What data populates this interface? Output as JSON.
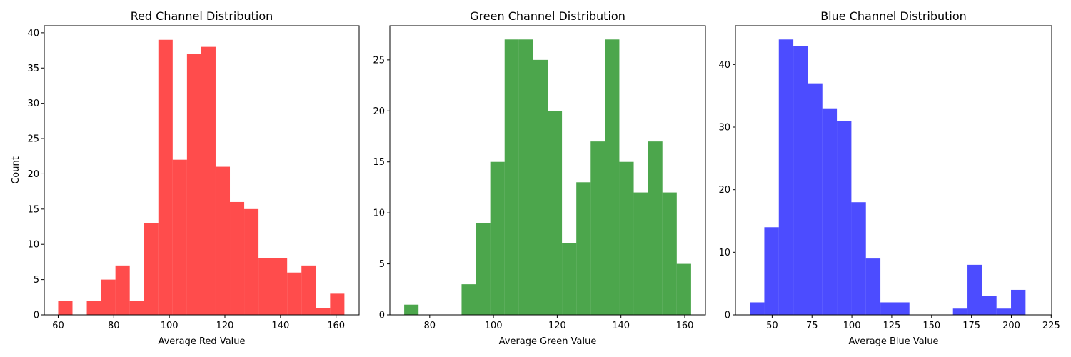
{
  "chart_data": [
    {
      "type": "bar",
      "title": "Red Channel Distribution",
      "xlabel": "Average Red Value",
      "ylabel": "Count",
      "color": "#ff0000",
      "opacity": 0.7,
      "bin_start": 60,
      "bin_width": 5.15,
      "values": [
        2,
        0,
        2,
        5,
        7,
        2,
        13,
        39,
        22,
        37,
        38,
        21,
        16,
        15,
        8,
        8,
        6,
        7,
        1,
        3
      ],
      "xlim": [
        55.0,
        168.3
      ],
      "ylim": [
        0,
        41
      ],
      "xticks": [
        60,
        80,
        100,
        120,
        140,
        160
      ],
      "yticks": [
        0,
        5,
        10,
        15,
        20,
        25,
        30,
        35,
        40
      ]
    },
    {
      "type": "bar",
      "title": "Green Channel Distribution",
      "xlabel": "Average Green Value",
      "ylabel": "",
      "color": "#008000",
      "opacity": 0.7,
      "bin_start": 72,
      "bin_width": 4.5,
      "values": [
        1,
        0,
        0,
        0,
        3,
        9,
        15,
        27,
        27,
        25,
        20,
        7,
        13,
        17,
        27,
        15,
        12,
        17,
        12,
        5
      ],
      "xlim": [
        67.5,
        166.5
      ],
      "ylim": [
        0,
        28.35
      ],
      "xticks": [
        80,
        100,
        120,
        140,
        160
      ],
      "yticks": [
        0,
        5,
        10,
        15,
        20,
        25
      ]
    },
    {
      "type": "bar",
      "title": "Blue Channel Distribution",
      "xlabel": "Average Blue Value",
      "ylabel": "",
      "color": "#0000ff",
      "opacity": 0.7,
      "bin_start": 36,
      "bin_width": 9.1,
      "values": [
        2,
        14,
        44,
        43,
        37,
        33,
        31,
        18,
        9,
        2,
        2,
        0,
        0,
        0,
        1,
        8,
        3,
        1,
        4,
        0
      ],
      "xlim": [
        27.0,
        225.3
      ],
      "ylim": [
        0,
        46.2
      ],
      "xticks": [
        50,
        75,
        100,
        125,
        150,
        175,
        200,
        225
      ],
      "yticks": [
        0,
        10,
        20,
        30,
        40
      ]
    }
  ]
}
